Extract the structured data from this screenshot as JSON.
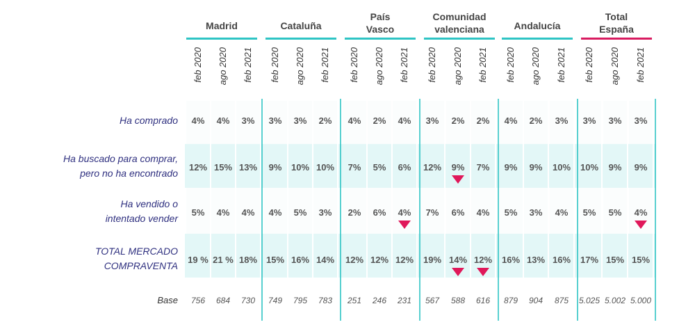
{
  "chart_data": {
    "type": "table",
    "regions": [
      "Madrid",
      "Cataluña",
      "País Vasco",
      "Comunidad valenciana",
      "Andalucía",
      "Total España"
    ],
    "periods": [
      "feb 2020",
      "ago 2020",
      "feb 2021"
    ],
    "rows": [
      {
        "label": "Ha comprado",
        "values": [
          "4%",
          "4%",
          "3%",
          "3%",
          "3%",
          "2%",
          "4%",
          "2%",
          "4%",
          "3%",
          "2%",
          "2%",
          "4%",
          "2%",
          "3%",
          "3%",
          "3%",
          "3%"
        ],
        "markers": []
      },
      {
        "label": "Ha buscado para comprar, pero no ha encontrado",
        "values": [
          "12%",
          "15%",
          "13%",
          "9%",
          "10%",
          "10%",
          "7%",
          "5%",
          "6%",
          "12%",
          "9%",
          "7%",
          "9%",
          "9%",
          "10%",
          "10%",
          "9%",
          "9%"
        ],
        "markers": [
          10
        ]
      },
      {
        "label": "Ha vendido o intentado vender",
        "values": [
          "5%",
          "4%",
          "4%",
          "4%",
          "5%",
          "3%",
          "2%",
          "6%",
          "4%",
          "7%",
          "6%",
          "4%",
          "5%",
          "3%",
          "4%",
          "5%",
          "5%",
          "4%"
        ],
        "markers": [
          8,
          17
        ]
      },
      {
        "label": "TOTAL MERCADO COMPRAVENTA",
        "values": [
          "19 %",
          "21 %",
          "18%",
          "15%",
          "16%",
          "14%",
          "12%",
          "12%",
          "12%",
          "19%",
          "14%",
          "12%",
          "16%",
          "13%",
          "16%",
          "17%",
          "15%",
          "15%"
        ],
        "markers": [
          10,
          11
        ]
      }
    ],
    "base": {
      "label": "Base",
      "values": [
        "756",
        "684",
        "730",
        "749",
        "795",
        "783",
        "251",
        "246",
        "231",
        "567",
        "588",
        "616",
        "879",
        "904",
        "875",
        "5.025",
        "5.002",
        "5.000"
      ]
    },
    "colors": {
      "region_underline": "#2ec4c4",
      "total_underline": "#d81b60",
      "band": "#e3f7f7",
      "separator": "#2ec4c4",
      "marker": "#e0185a"
    }
  }
}
